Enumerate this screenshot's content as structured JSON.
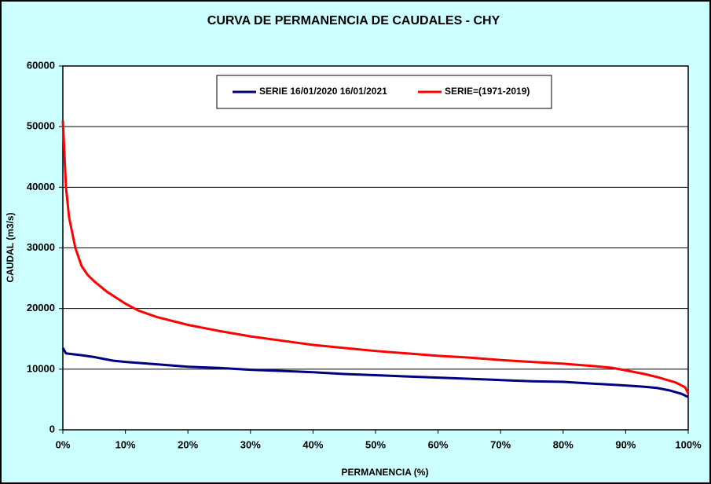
{
  "chart_data": {
    "type": "line",
    "title": "CURVA DE PERMANENCIA DE CAUDALES - CHY",
    "x_label": "PERMANENCIA  (%)",
    "y_label": "CAUDAL  (m3/s)",
    "xlim": [
      0,
      100
    ],
    "xticks": [
      {
        "value": 0,
        "label": "0%"
      },
      {
        "value": 10,
        "label": "10%"
      },
      {
        "value": 20,
        "label": "20%"
      },
      {
        "value": 30,
        "label": "30%"
      },
      {
        "value": 40,
        "label": "40%"
      },
      {
        "value": 50,
        "label": "50%"
      },
      {
        "value": 60,
        "label": "60%"
      },
      {
        "value": 70,
        "label": "70%"
      },
      {
        "value": 80,
        "label": "80%"
      },
      {
        "value": 90,
        "label": "90%"
      },
      {
        "value": 100,
        "label": "100%"
      }
    ],
    "ylim": [
      0,
      60000
    ],
    "yticks": [
      0,
      10000,
      20000,
      30000,
      40000,
      50000,
      60000
    ],
    "grid": true,
    "legend": "top",
    "series": [
      {
        "name": "SERIE 16/01/2020 16/01/2021",
        "color": "#000080",
        "x": [
          0,
          0.5,
          3,
          5,
          8,
          10,
          15,
          20,
          25,
          30,
          35,
          40,
          45,
          50,
          55,
          60,
          65,
          70,
          75,
          80,
          85,
          90,
          93,
          95,
          97,
          99,
          100
        ],
        "values": [
          13500,
          12600,
          12300,
          12000,
          11400,
          11200,
          10800,
          10400,
          10200,
          9900,
          9700,
          9500,
          9200,
          9000,
          8800,
          8600,
          8400,
          8200,
          8000,
          7900,
          7600,
          7300,
          7100,
          6900,
          6500,
          5900,
          5400
        ]
      },
      {
        "name": "SERIE=(1971-2019)",
        "color": "#ff0000",
        "x": [
          0,
          0.5,
          1,
          2,
          3,
          4,
          5,
          7,
          10,
          12,
          15,
          20,
          25,
          30,
          35,
          40,
          45,
          50,
          55,
          60,
          65,
          70,
          75,
          80,
          85,
          88,
          90,
          93,
          95,
          98,
          99.5,
          100
        ],
        "values": [
          51000,
          40000,
          35000,
          30000,
          27000,
          25500,
          24500,
          22800,
          20800,
          19700,
          18600,
          17300,
          16300,
          15400,
          14700,
          14000,
          13500,
          13000,
          12600,
          12200,
          11900,
          11500,
          11200,
          10900,
          10500,
          10200,
          9800,
          9200,
          8700,
          7800,
          7000,
          6000
        ]
      }
    ]
  }
}
